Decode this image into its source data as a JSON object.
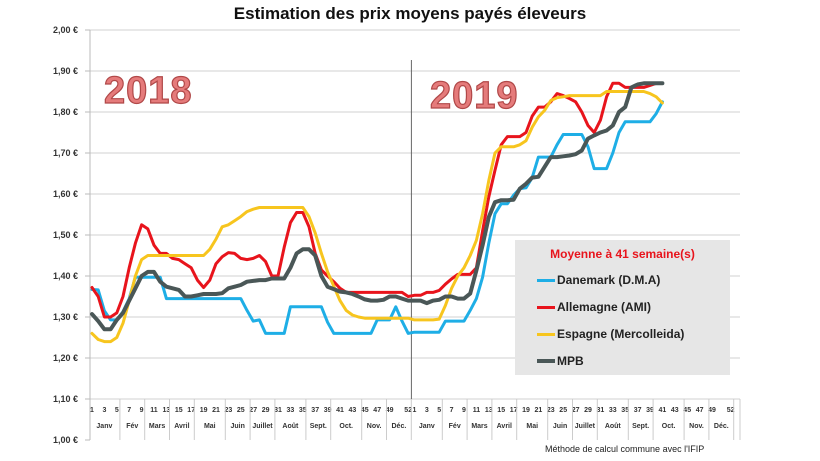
{
  "chart_data": {
    "type": "line",
    "title": "Estimation des prix moyens payés éleveurs",
    "year_labels": [
      "2018",
      "2019"
    ],
    "ylim": [
      1.0,
      2.0
    ],
    "y_ticks": [
      "1,00 €",
      "1,10 €",
      "1,20 €",
      "1,30 €",
      "1,40 €",
      "1,50 €",
      "1,60 €",
      "1,70 €",
      "1,80 €",
      "1,90 €",
      "2,00 €"
    ],
    "y_tick_values": [
      1.0,
      1.1,
      1.2,
      1.3,
      1.4,
      1.5,
      1.6,
      1.7,
      1.8,
      1.9,
      2.0
    ],
    "weeks_per_year": 52,
    "x_tick_labels": [
      "1",
      "3",
      "5",
      "7",
      "9",
      "11",
      "13",
      "15",
      "17",
      "19",
      "21",
      "23",
      "25",
      "27",
      "29",
      "31",
      "33",
      "35",
      "37",
      "39",
      "41",
      "43",
      "45",
      "47",
      "49",
      "52"
    ],
    "months": [
      "Janv",
      "Fév",
      "Mars",
      "Avril",
      "Mai",
      "Juin",
      "Juillet",
      "Août",
      "Sept.",
      "Oct.",
      "Nov.",
      "Déc."
    ],
    "grid": true,
    "legend_position": "bottom-right",
    "legend_title": "Moyenne à  41 semaine(s)",
    "series": [
      {
        "name": "Danemark (D.M.A)",
        "color": "#1eaee6",
        "2018": [
          1.367,
          1.366,
          1.315,
          1.293,
          1.293,
          1.313,
          1.345,
          1.397,
          1.397,
          1.397,
          1.397,
          1.397,
          1.345,
          1.345,
          1.345,
          1.345,
          1.345,
          1.345,
          1.345,
          1.345,
          1.345,
          1.345,
          1.345,
          1.345,
          1.345,
          1.316,
          1.29,
          1.293,
          1.26,
          1.26,
          1.26,
          1.26,
          1.325,
          1.325,
          1.325,
          1.325,
          1.325,
          1.325,
          1.287,
          1.26,
          1.26,
          1.26,
          1.26,
          1.26,
          1.26,
          1.26,
          1.293,
          1.293,
          1.293,
          1.325,
          1.29,
          1.26
        ],
        "2019": [
          1.263,
          1.263,
          1.263,
          1.263,
          1.263,
          1.29,
          1.29,
          1.29,
          1.29,
          1.316,
          1.345,
          1.397,
          1.48,
          1.552,
          1.576,
          1.576,
          1.597,
          1.613,
          1.615,
          1.64,
          1.69,
          1.69,
          1.69,
          1.72,
          1.745,
          1.745,
          1.745,
          1.745,
          1.715,
          1.662,
          1.662,
          1.662,
          1.7,
          1.75,
          1.776,
          1.776,
          1.776,
          1.776,
          1.776,
          1.796,
          1.825
        ]
      },
      {
        "name": "Allemagne (AMI)",
        "color": "#e8141c",
        "2018": [
          1.372,
          1.35,
          1.3,
          1.3,
          1.31,
          1.35,
          1.42,
          1.48,
          1.525,
          1.515,
          1.475,
          1.455,
          1.455,
          1.443,
          1.44,
          1.43,
          1.42,
          1.39,
          1.372,
          1.39,
          1.43,
          1.447,
          1.457,
          1.455,
          1.443,
          1.44,
          1.443,
          1.45,
          1.435,
          1.4,
          1.4,
          1.47,
          1.53,
          1.555,
          1.555,
          1.52,
          1.455,
          1.415,
          1.4,
          1.386,
          1.37,
          1.36,
          1.36,
          1.36,
          1.36,
          1.36,
          1.36,
          1.36,
          1.36,
          1.36,
          1.36,
          1.35
        ],
        "2019": [
          1.353,
          1.353,
          1.36,
          1.36,
          1.365,
          1.38,
          1.393,
          1.404,
          1.404,
          1.404,
          1.42,
          1.51,
          1.593,
          1.658,
          1.72,
          1.74,
          1.74,
          1.74,
          1.75,
          1.79,
          1.812,
          1.812,
          1.825,
          1.845,
          1.84,
          1.833,
          1.825,
          1.8,
          1.767,
          1.75,
          1.78,
          1.837,
          1.87,
          1.87,
          1.86,
          1.86,
          1.86,
          1.86,
          1.865,
          1.87,
          1.87
        ]
      },
      {
        "name": "Espagne (Mercolleida)",
        "color": "#f7c51e",
        "2018": [
          1.26,
          1.245,
          1.24,
          1.24,
          1.25,
          1.285,
          1.34,
          1.4,
          1.44,
          1.45,
          1.45,
          1.45,
          1.45,
          1.45,
          1.45,
          1.45,
          1.45,
          1.45,
          1.45,
          1.465,
          1.49,
          1.52,
          1.525,
          1.535,
          1.545,
          1.557,
          1.563,
          1.567,
          1.567,
          1.567,
          1.567,
          1.567,
          1.567,
          1.567,
          1.567,
          1.545,
          1.505,
          1.455,
          1.41,
          1.375,
          1.34,
          1.316,
          1.305,
          1.3,
          1.297,
          1.297,
          1.297,
          1.297,
          1.297,
          1.297,
          1.297,
          1.297
        ],
        "2019": [
          1.293,
          1.293,
          1.293,
          1.293,
          1.295,
          1.328,
          1.37,
          1.4,
          1.42,
          1.45,
          1.487,
          1.552,
          1.633,
          1.7,
          1.715,
          1.715,
          1.715,
          1.72,
          1.73,
          1.763,
          1.788,
          1.804,
          1.828,
          1.835,
          1.837,
          1.84,
          1.84,
          1.84,
          1.84,
          1.84,
          1.84,
          1.85,
          1.85,
          1.85,
          1.85,
          1.85,
          1.85,
          1.85,
          1.845,
          1.837,
          1.822
        ]
      },
      {
        "name": "MPB",
        "color": "#4a5757",
        "2018": [
          1.307,
          1.29,
          1.27,
          1.27,
          1.293,
          1.31,
          1.34,
          1.37,
          1.4,
          1.41,
          1.41,
          1.386,
          1.374,
          1.37,
          1.366,
          1.35,
          1.35,
          1.353,
          1.356,
          1.356,
          1.356,
          1.358,
          1.37,
          1.374,
          1.378,
          1.386,
          1.388,
          1.39,
          1.39,
          1.394,
          1.394,
          1.394,
          1.42,
          1.455,
          1.465,
          1.465,
          1.45,
          1.4,
          1.374,
          1.368,
          1.362,
          1.36,
          1.356,
          1.35,
          1.343,
          1.34,
          1.34,
          1.342,
          1.35,
          1.35,
          1.345,
          1.34
        ],
        "2019": [
          1.34,
          1.34,
          1.334,
          1.34,
          1.342,
          1.35,
          1.35,
          1.345,
          1.345,
          1.357,
          1.414,
          1.475,
          1.544,
          1.58,
          1.585,
          1.585,
          1.586,
          1.613,
          1.625,
          1.64,
          1.642,
          1.666,
          1.69,
          1.69,
          1.692,
          1.694,
          1.697,
          1.706,
          1.735,
          1.743,
          1.75,
          1.755,
          1.767,
          1.8,
          1.812,
          1.86,
          1.867,
          1.87,
          1.87,
          1.87,
          1.87
        ]
      }
    ],
    "footnote": "Méthode de calcul commune avec l'IFIP"
  }
}
